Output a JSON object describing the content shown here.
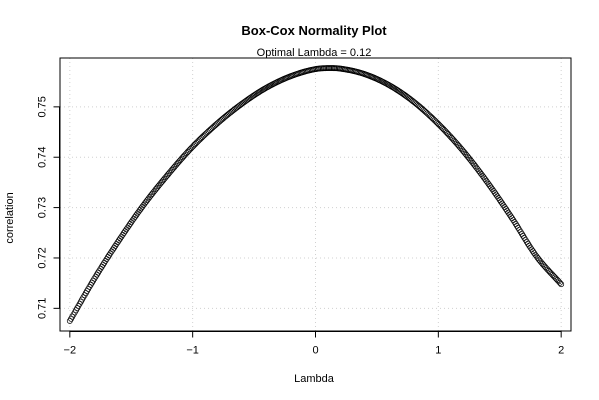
{
  "chart_data": {
    "type": "scatter",
    "title": "Box-Cox Normality Plot",
    "subtitle": "Optimal Lambda = 0.12",
    "xlabel": "Lambda",
    "ylabel": "correlation",
    "xlim": [
      -2.08,
      2.08
    ],
    "ylim": [
      0.7055,
      0.7597
    ],
    "xticks": [
      -2,
      -1,
      0,
      1,
      2
    ],
    "xtick_labels": [
      "−2",
      "−1",
      "0",
      "1",
      "2"
    ],
    "yticks": [
      0.71,
      0.72,
      0.73,
      0.74,
      0.75
    ],
    "ytick_labels": [
      "0.71",
      "0.72",
      "0.73",
      "0.74",
      "0.75"
    ],
    "grid": true,
    "marker": "open-circle",
    "series": [
      {
        "x": [
          -2.0,
          -1.8,
          -1.6,
          -1.4,
          -1.2,
          -1.0,
          -0.8,
          -0.6,
          -0.4,
          -0.2,
          0.0,
          0.12,
          0.2,
          0.4,
          0.6,
          0.8,
          1.0,
          1.2,
          1.4,
          1.6,
          1.8,
          2.0
        ],
        "y": [
          0.7075,
          0.7159,
          0.7235,
          0.7305,
          0.7366,
          0.7421,
          0.7467,
          0.7506,
          0.7538,
          0.7561,
          0.7575,
          0.7577,
          0.7576,
          0.7565,
          0.7543,
          0.751,
          0.7466,
          0.7413,
          0.735,
          0.7279,
          0.7203,
          0.7148
        ]
      }
    ]
  },
  "colors": {
    "points": "#000000",
    "grid": "#d0d0d0",
    "axis": "#000000"
  }
}
